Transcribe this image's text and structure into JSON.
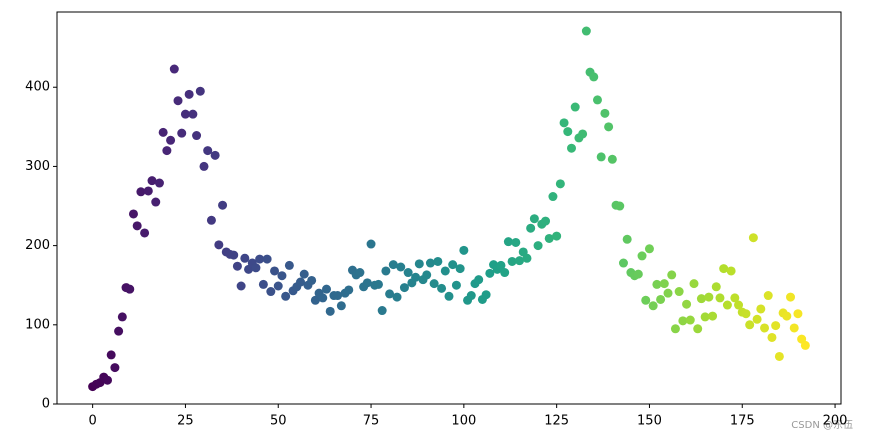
{
  "chart_data": {
    "type": "scatter",
    "x": [
      0,
      1,
      2,
      3,
      4,
      5,
      6,
      7,
      8,
      9,
      10,
      11,
      12,
      13,
      14,
      15,
      16,
      17,
      18,
      19,
      20,
      21,
      22,
      23,
      24,
      25,
      26,
      27,
      28,
      29,
      30,
      31,
      32,
      33,
      34,
      35,
      36,
      37,
      38,
      39,
      40,
      41,
      42,
      43,
      44,
      45,
      46,
      47,
      48,
      49,
      50,
      51,
      52,
      53,
      54,
      55,
      56,
      57,
      58,
      59,
      60,
      61,
      62,
      63,
      64,
      65,
      66,
      67,
      68,
      69,
      70,
      71,
      72,
      73,
      74,
      75,
      76,
      77,
      78,
      79,
      80,
      81,
      82,
      83,
      84,
      85,
      86,
      87,
      88,
      89,
      90,
      91,
      92,
      93,
      94,
      95,
      96,
      97,
      98,
      99,
      100,
      101,
      102,
      103,
      104,
      105,
      106,
      107,
      108,
      109,
      110,
      111,
      112,
      113,
      114,
      115,
      116,
      117,
      118,
      119,
      120,
      121,
      122,
      123,
      124,
      125,
      126,
      127,
      128,
      129,
      130,
      131,
      132,
      133,
      134,
      135,
      136,
      137,
      138,
      139,
      140,
      141,
      142,
      143,
      144,
      145,
      146,
      147,
      148,
      149,
      150,
      151,
      152,
      153,
      154,
      155,
      156,
      157,
      158,
      159,
      160,
      161,
      162,
      163,
      164,
      165,
      166,
      167,
      168,
      169,
      170,
      171,
      172,
      173,
      174,
      175,
      176,
      177,
      178,
      179,
      180,
      181,
      182,
      183,
      184,
      185,
      186,
      187,
      188,
      189,
      190,
      191,
      192
    ],
    "values": [
      22,
      25,
      27,
      34,
      30,
      62,
      46,
      92,
      110,
      147,
      145,
      240,
      225,
      268,
      216,
      269,
      282,
      255,
      279,
      343,
      320,
      333,
      423,
      383,
      342,
      366,
      391,
      366,
      339,
      395,
      300,
      320,
      232,
      314,
      201,
      251,
      192,
      189,
      188,
      174,
      149,
      184,
      170,
      178,
      172,
      183,
      151,
      183,
      142,
      168,
      149,
      162,
      136,
      175,
      143,
      148,
      154,
      164,
      150,
      156,
      131,
      140,
      134,
      145,
      117,
      137,
      137,
      124,
      140,
      144,
      169,
      163,
      166,
      148,
      153,
      202,
      150,
      151,
      118,
      168,
      139,
      176,
      135,
      173,
      147,
      166,
      153,
      160,
      177,
      157,
      163,
      178,
      152,
      180,
      146,
      168,
      136,
      176,
      150,
      171,
      194,
      131,
      137,
      152,
      157,
      132,
      138,
      165,
      176,
      170,
      175,
      166,
      205,
      180,
      204,
      181,
      192,
      184,
      222,
      234,
      200,
      227,
      231,
      209,
      262,
      212,
      278,
      355,
      344,
      323,
      375,
      336,
      341,
      471,
      419,
      413,
      384,
      312,
      367,
      350,
      309,
      251,
      250,
      178,
      208,
      166,
      162,
      164,
      187,
      131,
      196,
      124,
      151,
      132,
      152,
      140,
      163,
      95,
      142,
      105,
      126,
      106,
      152,
      95,
      133,
      110,
      135,
      111,
      148,
      134,
      171,
      125,
      168,
      134,
      125,
      116,
      114,
      100,
      210,
      107,
      120,
      96,
      137,
      84,
      99,
      60,
      115,
      111,
      135,
      96,
      114,
      82,
      74
    ],
    "colormap": [
      "#440154",
      "#482878",
      "#3e4989",
      "#31688e",
      "#26828e",
      "#1f9e89",
      "#35b779",
      "#6ece58",
      "#b5de2b",
      "#fde725"
    ],
    "xlim": [
      -9.6,
      201.6
    ],
    "ylim": [
      0,
      495
    ],
    "xticks": [
      0,
      25,
      50,
      75,
      100,
      125,
      150,
      175,
      200
    ],
    "yticks": [
      0,
      100,
      200,
      300,
      400
    ],
    "watermark": "CSDN @东伍"
  }
}
